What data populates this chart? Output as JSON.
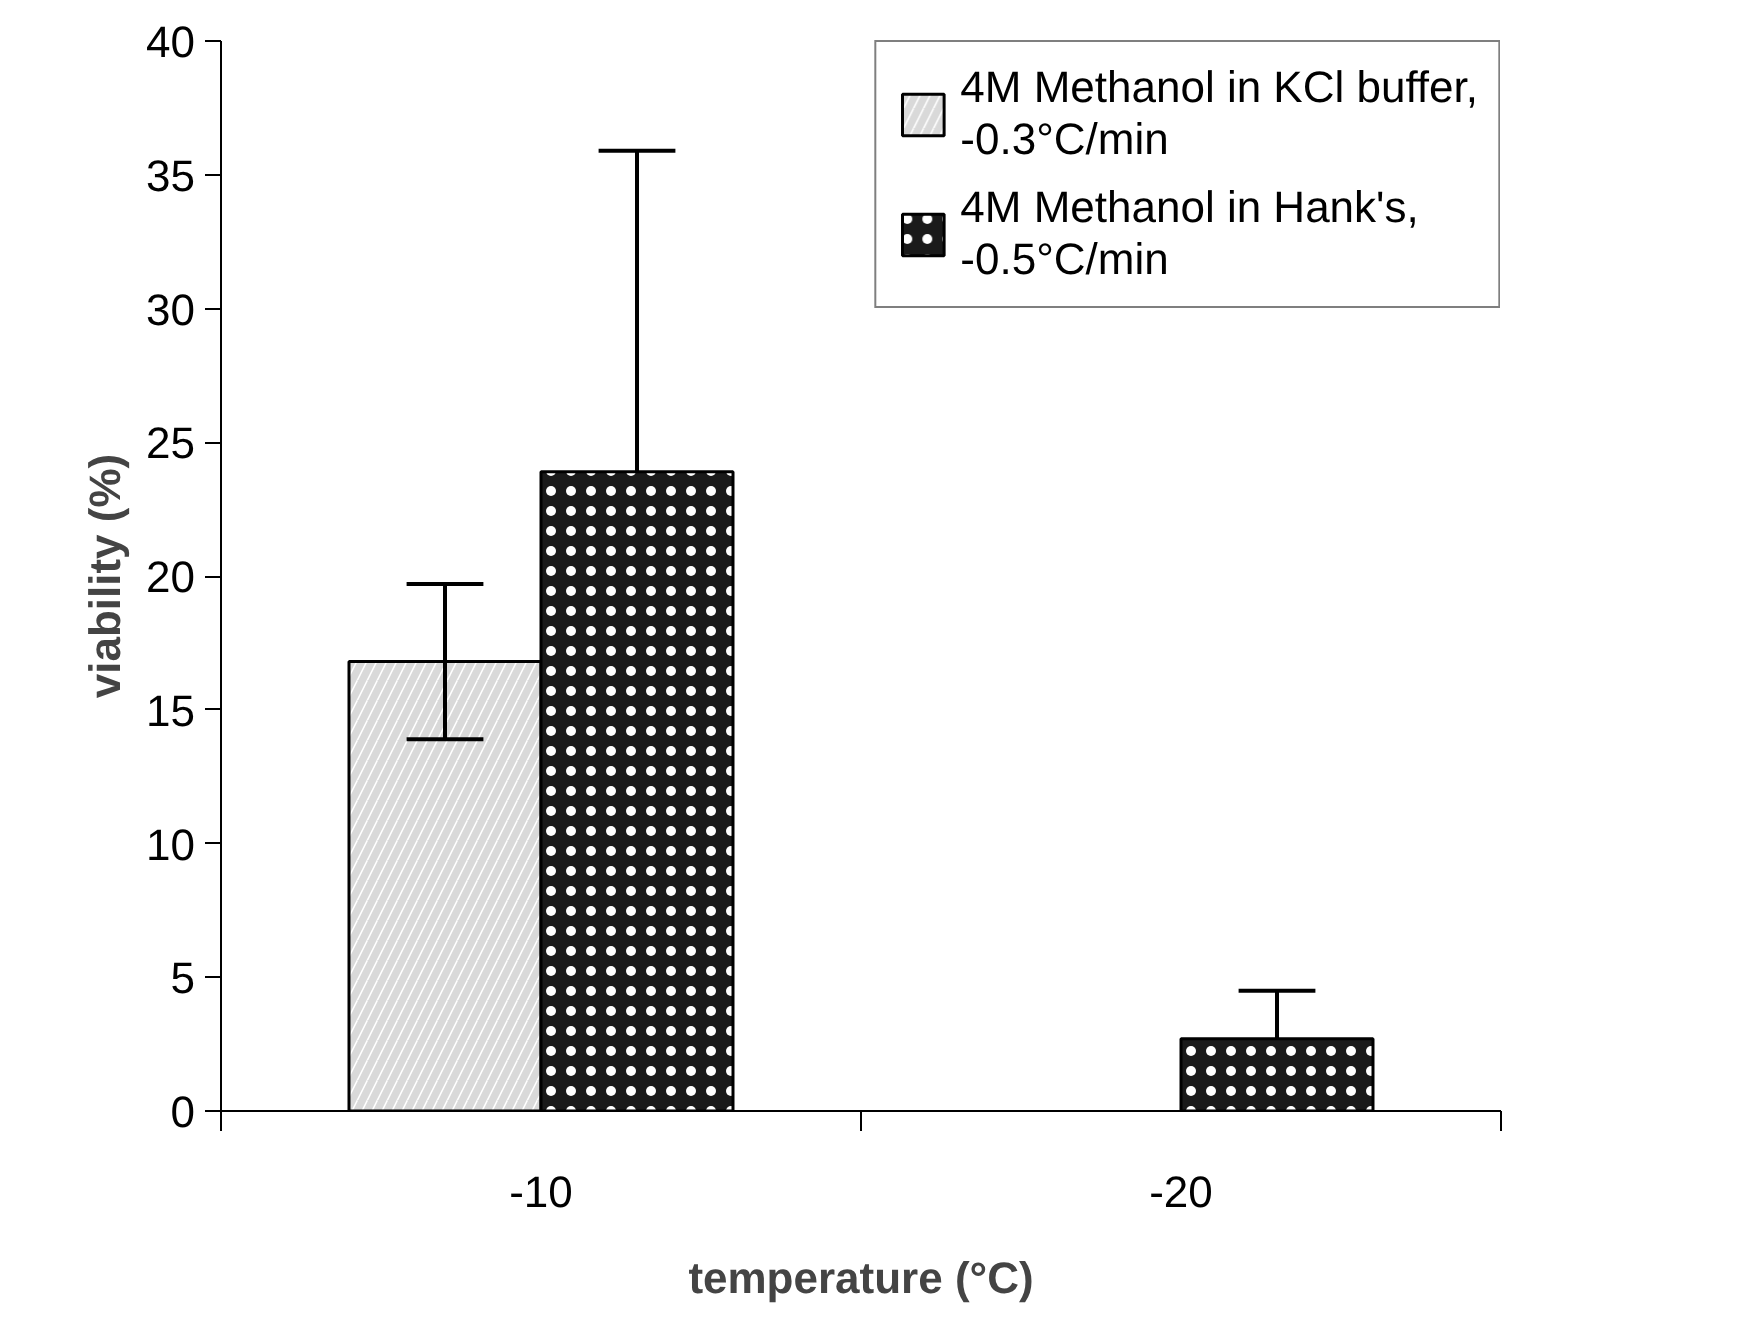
{
  "chart_data": {
    "type": "bar",
    "xlabel": "temperature (°C)",
    "ylabel": "viability (%)",
    "categories": [
      "-10",
      "-20"
    ],
    "series": [
      {
        "name": "4M Methanol in KCl buffer, -0.3°C/min",
        "color": "#d9d9d9",
        "values": [
          16.8,
          null
        ],
        "errors": [
          2.9,
          null
        ]
      },
      {
        "name": "4M Methanol in Hank's, -0.5°C/min",
        "color": "#1a1a1a",
        "values": [
          23.9,
          2.7
        ],
        "errors": [
          [
            23.9,
            35.9
          ],
          [
            2.7,
            4.5
          ]
        ]
      }
    ],
    "ylim": [
      0,
      40
    ],
    "yticks": [
      0,
      5,
      10,
      15,
      20,
      25,
      30,
      35,
      40
    ],
    "grid": false,
    "legend": "top right"
  }
}
